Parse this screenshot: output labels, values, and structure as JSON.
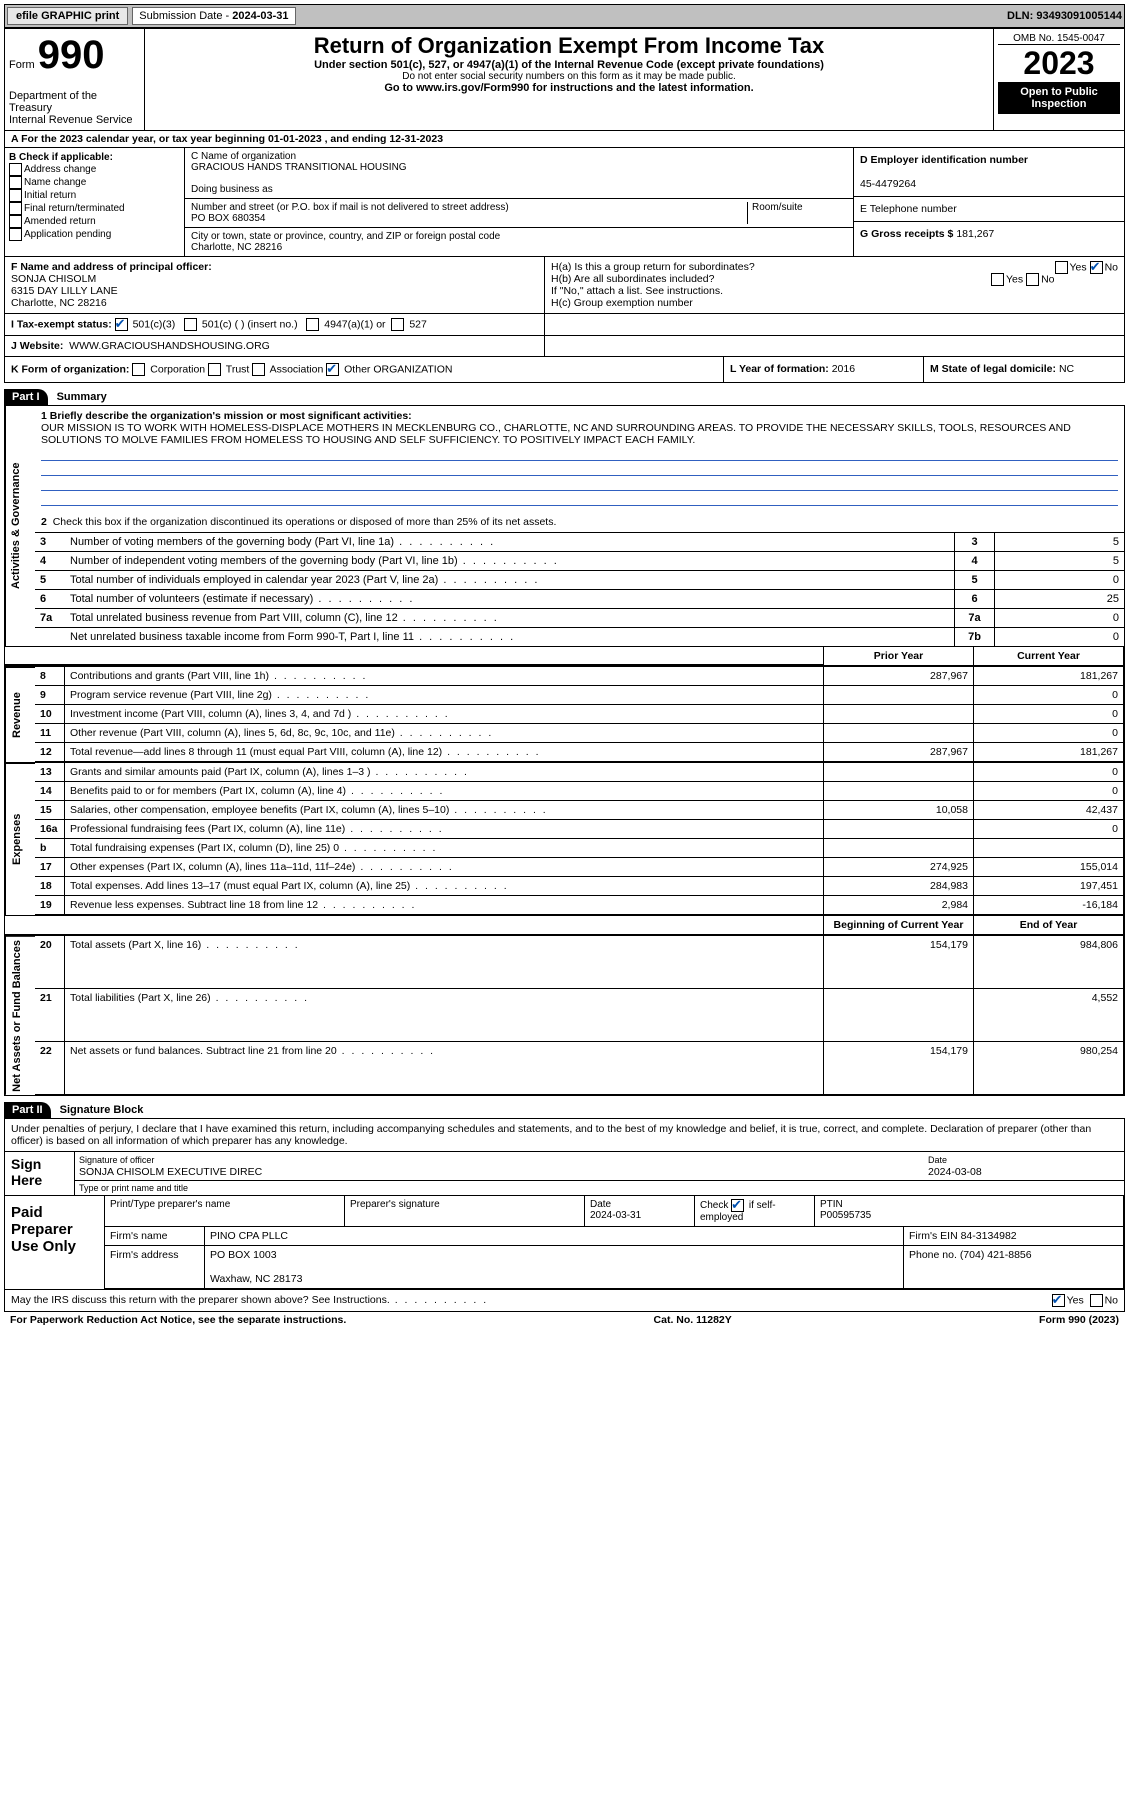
{
  "topbar": {
    "efile": "efile GRAPHIC print",
    "submission_label": "Submission Date - ",
    "submission_date": "2024-03-31",
    "dln": "DLN: 93493091005144"
  },
  "header": {
    "form_word": "Form",
    "form_no": "990",
    "dept": "Department of the Treasury",
    "irs": "Internal Revenue Service",
    "title": "Return of Organization Exempt From Income Tax",
    "subtitle": "Under section 501(c), 527, or 4947(a)(1) of the Internal Revenue Code (except private foundations)",
    "warn": "Do not enter social security numbers on this form as it may be made public.",
    "goto": "Go to www.irs.gov/Form990 for instructions and the latest information.",
    "omb": "OMB No. 1545-0047",
    "year": "2023",
    "open": "Open to Public Inspection"
  },
  "rowA": "A For the 2023 calendar year, or tax year beginning 01-01-2023   , and ending 12-31-2023",
  "colB": {
    "label": "B Check if applicable:",
    "items": [
      "Address change",
      "Name change",
      "Initial return",
      "Final return/terminated",
      "Amended return",
      "Application pending"
    ]
  },
  "colC": {
    "name_label": "C Name of organization",
    "name": "GRACIOUS HANDS TRANSITIONAL HOUSING",
    "dba_label": "Doing business as",
    "dba": "",
    "street_label": "Number and street (or P.O. box if mail is not delivered to street address)",
    "room_label": "Room/suite",
    "street": "PO BOX 680354",
    "city_label": "City or town, state or province, country, and ZIP or foreign postal code",
    "city": "Charlotte, NC  28216"
  },
  "colDE": {
    "d_label": "D Employer identification number",
    "ein": "45-4479264",
    "e_label": "E Telephone number",
    "phone": "",
    "g_label": "G Gross receipts $",
    "g_val": "181,267"
  },
  "sectionF": {
    "label": "F Name and address of principal officer:",
    "name": "SONJA CHISOLM",
    "addr1": "6315 DAY LILLY LANE",
    "addr2": "Charlotte, NC  28216"
  },
  "sectionH": {
    "ha": "H(a)  Is this a group return for subordinates?",
    "ha_yes": "Yes",
    "ha_no": "No",
    "hb": "H(b)  Are all subordinates included?",
    "hb_yes": "Yes",
    "hb_no": "No",
    "hb_note": "If \"No,\" attach a list. See instructions.",
    "hc": "H(c)  Group exemption number"
  },
  "rowI": {
    "label": "I    Tax-exempt status:",
    "opts": [
      "501(c)(3)",
      "501(c) (  ) (insert no.)",
      "4947(a)(1) or",
      "527"
    ]
  },
  "rowJ": {
    "label": "J    Website:",
    "val": "WWW.GRACIOUSHANDSHOUSING.ORG"
  },
  "rowK": {
    "label": "K Form of organization:",
    "opts": [
      "Corporation",
      "Trust",
      "Association",
      "Other"
    ],
    "other": "ORGANIZATION"
  },
  "rowL": {
    "label": "L Year of formation:",
    "val": "2016"
  },
  "rowM": {
    "label": "M State of legal domicile:",
    "val": "NC"
  },
  "part1": {
    "hdr": "Part I",
    "title": "Summary",
    "q1_label": "1   Briefly describe the organization's mission or most significant activities:",
    "mission": "OUR MISSION IS TO WORK WITH HOMELESS-DISPLACE MOTHERS IN MECKLENBURG CO., CHARLOTTE, NC AND SURROUNDING AREAS. TO PROVIDE THE NECESSARY SKILLS, TOOLS, RESOURCES AND SOLUTIONS TO MOLVE FAMILIES FROM HOMELESS TO HOUSING AND SELF SUFFICIENCY. TO POSITIVELY IMPACT EACH FAMILY.",
    "q2": "Check this box      if the organization discontinued its operations or disposed of more than 25% of its net assets.",
    "rows": [
      {
        "n": "3",
        "t": "Number of voting members of the governing body (Part VI, line 1a)",
        "b": "3",
        "v": "5"
      },
      {
        "n": "4",
        "t": "Number of independent voting members of the governing body (Part VI, line 1b)",
        "b": "4",
        "v": "5"
      },
      {
        "n": "5",
        "t": "Total number of individuals employed in calendar year 2023 (Part V, line 2a)",
        "b": "5",
        "v": "0"
      },
      {
        "n": "6",
        "t": "Total number of volunteers (estimate if necessary)",
        "b": "6",
        "v": "25"
      },
      {
        "n": "7a",
        "t": "Total unrelated business revenue from Part VIII, column (C), line 12",
        "b": "7a",
        "v": "0"
      },
      {
        "n": "",
        "t": "Net unrelated business taxable income from Form 990-T, Part I, line 11",
        "b": "7b",
        "v": "0"
      }
    ],
    "side1": "Activities & Governance",
    "side2": "Revenue",
    "side3": "Expenses",
    "side4": "Net Assets or Fund Balances",
    "hdr_prior": "Prior Year",
    "hdr_curr": "Current Year",
    "hdr_beg": "Beginning of Current Year",
    "hdr_end": "End of Year",
    "revenue": [
      {
        "n": "8",
        "t": "Contributions and grants (Part VIII, line 1h)",
        "p": "287,967",
        "c": "181,267"
      },
      {
        "n": "9",
        "t": "Program service revenue (Part VIII, line 2g)",
        "p": "",
        "c": "0"
      },
      {
        "n": "10",
        "t": "Investment income (Part VIII, column (A), lines 3, 4, and 7d )",
        "p": "",
        "c": "0"
      },
      {
        "n": "11",
        "t": "Other revenue (Part VIII, column (A), lines 5, 6d, 8c, 9c, 10c, and 11e)",
        "p": "",
        "c": "0"
      },
      {
        "n": "12",
        "t": "Total revenue—add lines 8 through 11 (must equal Part VIII, column (A), line 12)",
        "p": "287,967",
        "c": "181,267"
      }
    ],
    "expenses": [
      {
        "n": "13",
        "t": "Grants and similar amounts paid (Part IX, column (A), lines 1–3 )",
        "p": "",
        "c": "0"
      },
      {
        "n": "14",
        "t": "Benefits paid to or for members (Part IX, column (A), line 4)",
        "p": "",
        "c": "0"
      },
      {
        "n": "15",
        "t": "Salaries, other compensation, employee benefits (Part IX, column (A), lines 5–10)",
        "p": "10,058",
        "c": "42,437"
      },
      {
        "n": "16a",
        "t": "Professional fundraising fees (Part IX, column (A), line 11e)",
        "p": "",
        "c": "0"
      },
      {
        "n": "b",
        "t": "Total fundraising expenses (Part IX, column (D), line 25) 0",
        "p": "",
        "c": ""
      },
      {
        "n": "17",
        "t": "Other expenses (Part IX, column (A), lines 11a–11d, 11f–24e)",
        "p": "274,925",
        "c": "155,014"
      },
      {
        "n": "18",
        "t": "Total expenses. Add lines 13–17 (must equal Part IX, column (A), line 25)",
        "p": "284,983",
        "c": "197,451"
      },
      {
        "n": "19",
        "t": "Revenue less expenses. Subtract line 18 from line 12",
        "p": "2,984",
        "c": "-16,184"
      }
    ],
    "netassets": [
      {
        "n": "20",
        "t": "Total assets (Part X, line 16)",
        "p": "154,179",
        "c": "984,806"
      },
      {
        "n": "21",
        "t": "Total liabilities (Part X, line 26)",
        "p": "",
        "c": "4,552"
      },
      {
        "n": "22",
        "t": "Net assets or fund balances. Subtract line 21 from line 20",
        "p": "154,179",
        "c": "980,254"
      }
    ]
  },
  "part2": {
    "hdr": "Part II",
    "title": "Signature Block",
    "perjury": "Under penalties of perjury, I declare that I have examined this return, including accompanying schedules and statements, and to the best of my knowledge and belief, it is true, correct, and complete. Declaration of preparer (other than officer) is based on all information of which preparer has any knowledge.",
    "sign_here": "Sign Here",
    "sig_officer": "Signature of officer",
    "sig_name": "SONJA CHISOLM EXECUTIVE DIREC",
    "sig_type": "Type or print name and title",
    "date_label": "Date",
    "date": "2024-03-08",
    "paid": "Paid Preparer Use Only",
    "p_name_label": "Print/Type preparer's name",
    "p_sig_label": "Preparer's signature",
    "p_date_label": "Date",
    "p_date": "2024-03-31",
    "p_check": "Check       if self-employed",
    "ptin_label": "PTIN",
    "ptin": "P00595735",
    "firm_name_label": "Firm's name",
    "firm_name": "PINO CPA PLLC",
    "firm_ein_label": "Firm's EIN",
    "firm_ein": "84-3134982",
    "firm_addr_label": "Firm's address",
    "firm_addr1": "PO BOX 1003",
    "firm_addr2": "Waxhaw, NC  28173",
    "phone_label": "Phone no.",
    "phone": "(704) 421-8856",
    "discuss": "May the IRS discuss this return with the preparer shown above? See Instructions.",
    "yes": "Yes",
    "no": "No"
  },
  "footer": {
    "paperwork": "For Paperwork Reduction Act Notice, see the separate instructions.",
    "cat": "Cat. No. 11282Y",
    "form": "Form 990 (2023)"
  }
}
